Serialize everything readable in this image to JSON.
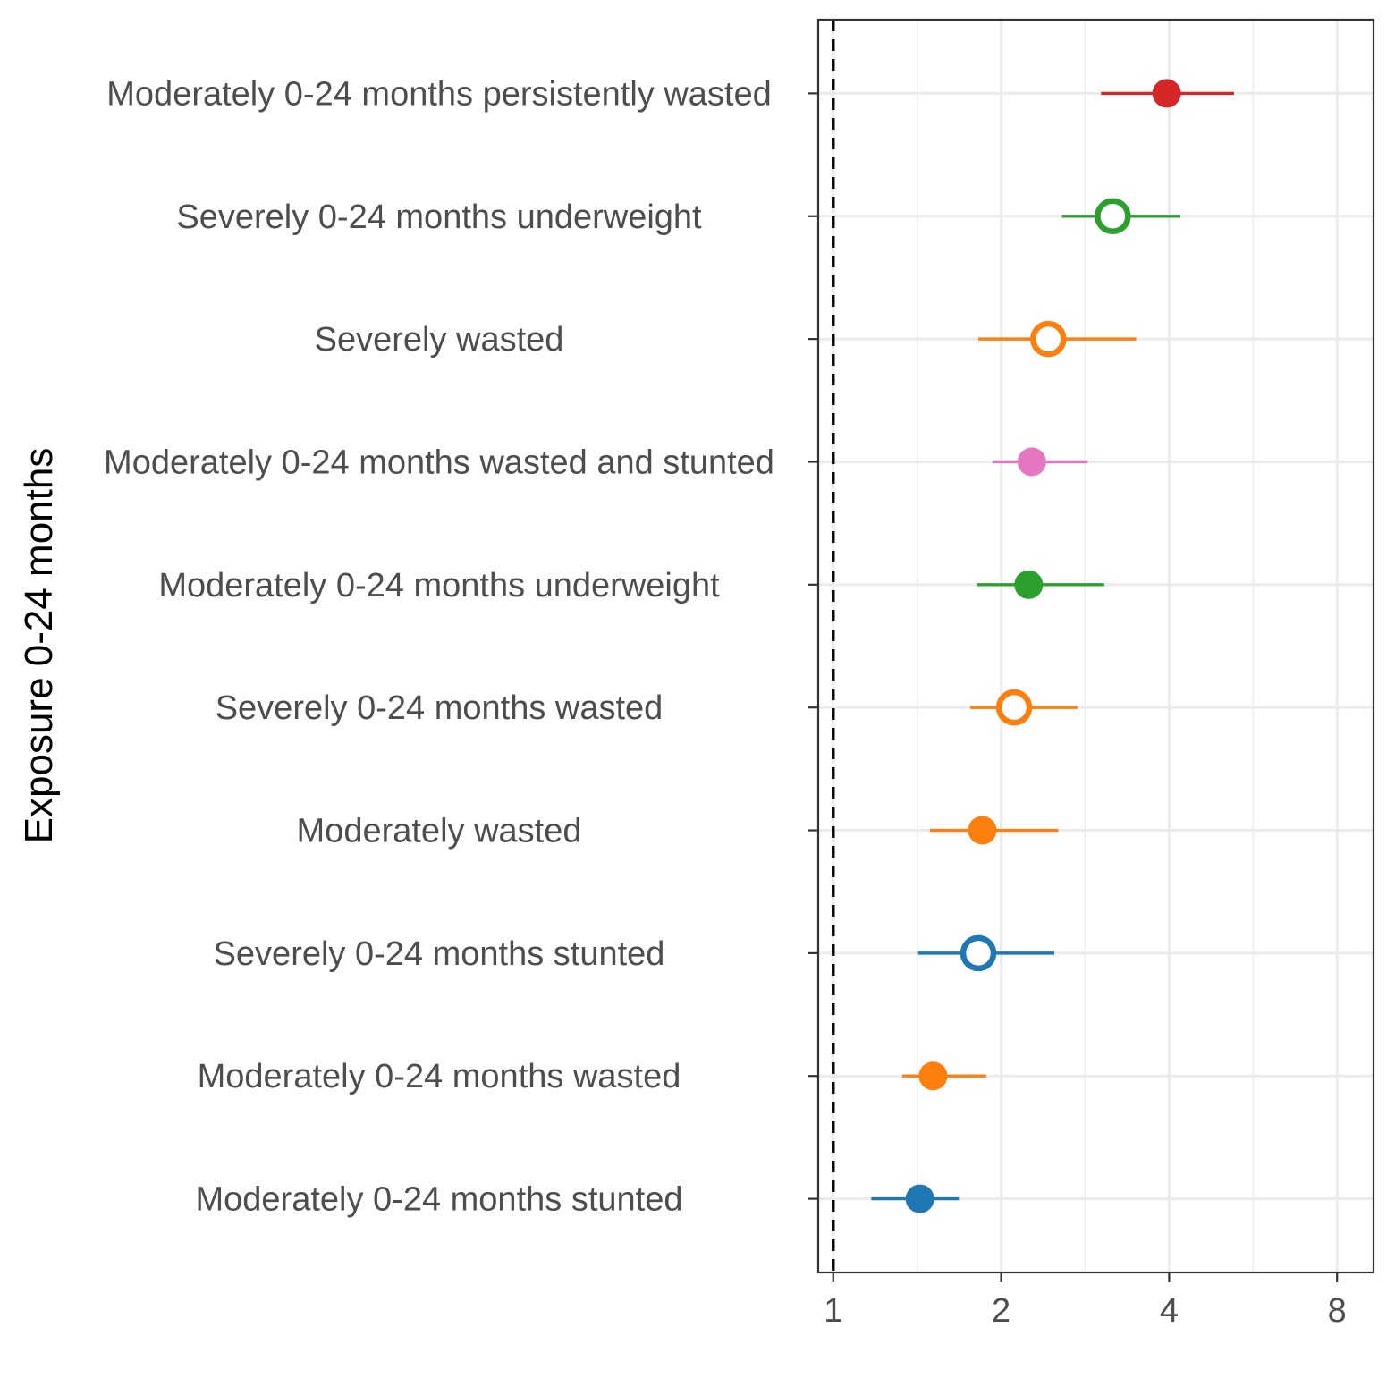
{
  "chart_data": {
    "type": "scatter",
    "ylabel": "Exposure 0-24 months",
    "xlabel": "",
    "x_scale": "log2",
    "xlim": [
      0.94,
      9.3
    ],
    "x_ticks": [
      "1",
      "2",
      "4",
      "8"
    ],
    "x_tick_values": [
      1,
      2,
      4,
      8
    ],
    "reference_line": 1,
    "grid": true,
    "legend": "none",
    "categories": [
      "Moderately 0-24 months persistently wasted",
      "Severely 0-24 months underweight",
      "Severely wasted",
      "Moderately 0-24 months wasted and stunted",
      "Moderately 0-24 months underweight",
      "Severely 0-24 months wasted",
      "Moderately wasted",
      "Severely 0-24 months stunted",
      "Moderately 0-24 months wasted",
      "Moderately 0-24 months stunted"
    ],
    "points": [
      {
        "estimate": 3.96,
        "lower": 3.02,
        "upper": 5.23,
        "color": "#d62728",
        "filled": true
      },
      {
        "estimate": 3.17,
        "lower": 2.57,
        "upper": 4.19,
        "color": "#2ca02c",
        "filled": false
      },
      {
        "estimate": 2.43,
        "lower": 1.82,
        "upper": 3.49,
        "color": "#ff7f0e",
        "filled": false
      },
      {
        "estimate": 2.27,
        "lower": 1.93,
        "upper": 2.86,
        "color": "#e377c2",
        "filled": true
      },
      {
        "estimate": 2.24,
        "lower": 1.81,
        "upper": 3.06,
        "color": "#2ca02c",
        "filled": true
      },
      {
        "estimate": 2.11,
        "lower": 1.76,
        "upper": 2.74,
        "color": "#ff7f0e",
        "filled": false
      },
      {
        "estimate": 1.85,
        "lower": 1.49,
        "upper": 2.53,
        "color": "#ff7f0e",
        "filled": true
      },
      {
        "estimate": 1.82,
        "lower": 1.42,
        "upper": 2.49,
        "color": "#1f77b4",
        "filled": false
      },
      {
        "estimate": 1.51,
        "lower": 1.33,
        "upper": 1.88,
        "color": "#ff7f0e",
        "filled": true
      },
      {
        "estimate": 1.43,
        "lower": 1.17,
        "upper": 1.68,
        "color": "#1f77b4",
        "filled": true
      }
    ]
  }
}
